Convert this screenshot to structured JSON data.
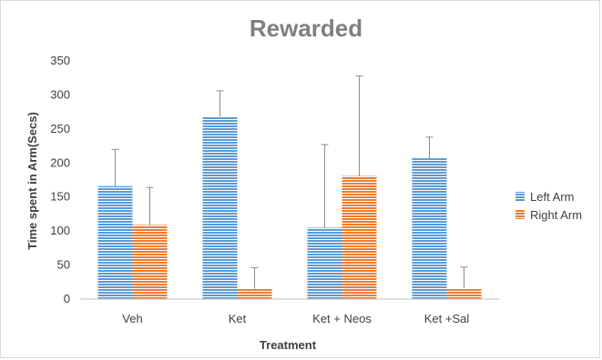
{
  "chart_data": {
    "type": "bar",
    "title": "Rewarded",
    "xlabel": "Treatment",
    "ylabel": "Time spent in Arm(Secs)",
    "categories": [
      "Veh",
      "Ket",
      "Ket + Neos",
      "Ket +Sal"
    ],
    "series": [
      {
        "name": "Left Arm",
        "color": "#5b9bd5",
        "values": [
          166,
          268,
          105,
          207
        ],
        "error_plus": [
          54,
          38,
          122,
          31
        ]
      },
      {
        "name": "Right Arm",
        "color": "#ed7d31",
        "values": [
          109,
          15,
          181,
          16
        ],
        "error_plus": [
          55,
          31,
          147,
          31
        ]
      }
    ],
    "ylim": [
      0,
      350
    ],
    "yticks": [
      0,
      50,
      100,
      150,
      200,
      250,
      300,
      350
    ],
    "grid": false,
    "legend_position": "right"
  }
}
